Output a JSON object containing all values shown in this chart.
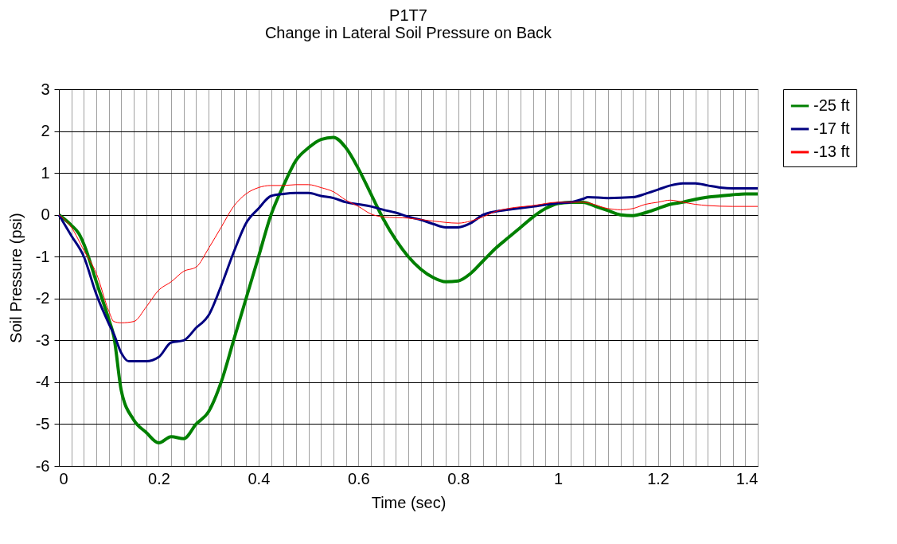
{
  "chart_data": {
    "type": "line",
    "title": "P1T7",
    "subtitle": "Change in Lateral Soil Pressure on Back",
    "xlabel": "Time (sec)",
    "ylabel": "Soil Pressure (psi)",
    "xlim": [
      0,
      1.4
    ],
    "ylim": [
      -6,
      3
    ],
    "yticks": [
      -6,
      -5,
      -4,
      -3,
      -2,
      -1,
      0,
      1,
      2,
      3
    ],
    "xticks": [
      0,
      {
        "value": 0.025,
        "label": null
      },
      {
        "value": 0.05,
        "label": null
      },
      {
        "value": 0.075,
        "label": null
      },
      {
        "value": 0.1,
        "label": null
      },
      {
        "value": 0.125,
        "label": null
      },
      {
        "value": 0.15,
        "label": null
      },
      {
        "value": 0.175,
        "label": null
      },
      0.2,
      {
        "value": 0.225,
        "label": null
      },
      {
        "value": 0.25,
        "label": null
      },
      {
        "value": 0.275,
        "label": null
      },
      {
        "value": 0.3,
        "label": null
      },
      {
        "value": 0.325,
        "label": null
      },
      {
        "value": 0.35,
        "label": null
      },
      {
        "value": 0.375,
        "label": null
      },
      0.4,
      {
        "value": 0.425,
        "label": null
      },
      {
        "value": 0.45,
        "label": null
      },
      {
        "value": 0.475,
        "label": null
      },
      {
        "value": 0.5,
        "label": null
      },
      {
        "value": 0.525,
        "label": null
      },
      {
        "value": 0.55,
        "label": null
      },
      {
        "value": 0.575,
        "label": null
      },
      0.6,
      {
        "value": 0.625,
        "label": null
      },
      {
        "value": 0.65,
        "label": null
      },
      {
        "value": 0.675,
        "label": null
      },
      {
        "value": 0.7,
        "label": null
      },
      {
        "value": 0.725,
        "label": null
      },
      {
        "value": 0.75,
        "label": null
      },
      {
        "value": 0.775,
        "label": null
      },
      0.8,
      {
        "value": 0.825,
        "label": null
      },
      {
        "value": 0.85,
        "label": null
      },
      {
        "value": 0.875,
        "label": null
      },
      {
        "value": 0.9,
        "label": null
      },
      {
        "value": 0.925,
        "label": null
      },
      {
        "value": 0.95,
        "label": null
      },
      {
        "value": 0.975,
        "label": null
      },
      1,
      {
        "value": 1.025,
        "label": null
      },
      {
        "value": 1.05,
        "label": null
      },
      {
        "value": 1.075,
        "label": null
      },
      {
        "value": 1.1,
        "label": null
      },
      {
        "value": 1.125,
        "label": null
      },
      {
        "value": 1.15,
        "label": null
      },
      {
        "value": 1.175,
        "label": null
      },
      1.2,
      {
        "value": 1.225,
        "label": null
      },
      {
        "value": 1.25,
        "label": null
      },
      {
        "value": 1.275,
        "label": null
      },
      {
        "value": 1.3,
        "label": null
      },
      {
        "value": 1.325,
        "label": null
      },
      {
        "value": 1.35,
        "label": null
      },
      {
        "value": 1.375,
        "label": null
      },
      1.4
    ],
    "grid": true,
    "legend": "right",
    "line_style": "solid",
    "marker": "none",
    "series": [
      {
        "name": "-25 ft",
        "color": "#008000",
        "x": [
          0,
          0.025,
          0.04,
          0.05,
          0.075,
          0.1,
          0.11,
          0.125,
          0.15,
          0.175,
          0.2,
          0.225,
          0.25,
          0.275,
          0.3,
          0.325,
          0.35,
          0.375,
          0.4,
          0.425,
          0.45,
          0.475,
          0.5,
          0.525,
          0.55,
          0.575,
          0.6,
          0.625,
          0.65,
          0.675,
          0.7,
          0.725,
          0.75,
          0.775,
          0.8,
          0.825,
          0.85,
          0.875,
          0.9,
          0.925,
          0.95,
          0.975,
          1.0,
          1.025,
          1.05,
          1.075,
          1.1,
          1.125,
          1.15,
          1.175,
          1.2,
          1.225,
          1.25,
          1.275,
          1.3,
          1.325,
          1.35,
          1.375,
          1.4
        ],
        "values": [
          0,
          -0.25,
          -0.45,
          -0.7,
          -1.6,
          -2.5,
          -2.9,
          -4.2,
          -4.9,
          -5.2,
          -5.45,
          -5.3,
          -5.35,
          -5.0,
          -4.7,
          -4.0,
          -3.0,
          -2.0,
          -1.0,
          0,
          0.7,
          1.3,
          1.6,
          1.8,
          1.85,
          1.6,
          1.1,
          0.5,
          -0.1,
          -0.6,
          -1.0,
          -1.3,
          -1.5,
          -1.6,
          -1.58,
          -1.4,
          -1.1,
          -0.8,
          -0.55,
          -0.3,
          -0.05,
          0.15,
          0.27,
          0.3,
          0.3,
          0.2,
          0.1,
          0.0,
          -0.02,
          0.05,
          0.15,
          0.25,
          0.3,
          0.37,
          0.42,
          0.45,
          0.48,
          0.5,
          0.5
        ]
      },
      {
        "name": "-17 ft",
        "color": "#000080",
        "x": [
          0,
          0.025,
          0.05,
          0.075,
          0.1,
          0.11,
          0.125,
          0.14,
          0.175,
          0.2,
          0.225,
          0.25,
          0.275,
          0.3,
          0.325,
          0.35,
          0.375,
          0.4,
          0.425,
          0.45,
          0.475,
          0.5,
          0.525,
          0.55,
          0.575,
          0.6,
          0.625,
          0.65,
          0.675,
          0.7,
          0.725,
          0.75,
          0.775,
          0.8,
          0.825,
          0.85,
          0.875,
          0.9,
          0.95,
          1.0,
          1.025,
          1.05,
          1.06,
          1.1,
          1.15,
          1.175,
          1.2,
          1.225,
          1.25,
          1.275,
          1.3,
          1.325,
          1.35,
          1.4
        ],
        "values": [
          0,
          -0.5,
          -1.0,
          -1.9,
          -2.6,
          -2.85,
          -3.3,
          -3.5,
          -3.5,
          -3.4,
          -3.05,
          -3.0,
          -2.7,
          -2.4,
          -1.7,
          -0.9,
          -0.2,
          0.15,
          0.45,
          0.5,
          0.52,
          0.52,
          0.45,
          0.4,
          0.3,
          0.25,
          0.2,
          0.12,
          0.05,
          -0.05,
          -0.12,
          -0.22,
          -0.3,
          -0.3,
          -0.2,
          0.0,
          0.08,
          0.12,
          0.2,
          0.28,
          0.3,
          0.38,
          0.42,
          0.4,
          0.42,
          0.5,
          0.6,
          0.7,
          0.75,
          0.75,
          0.7,
          0.65,
          0.63,
          0.63
        ]
      },
      {
        "name": "-13 ft",
        "color": "#ff0000",
        "x": [
          0,
          0.025,
          0.05,
          0.075,
          0.1,
          0.11,
          0.125,
          0.15,
          0.175,
          0.2,
          0.225,
          0.25,
          0.275,
          0.3,
          0.325,
          0.35,
          0.375,
          0.4,
          0.425,
          0.45,
          0.475,
          0.5,
          0.525,
          0.55,
          0.575,
          0.6,
          0.625,
          0.65,
          0.7,
          0.75,
          0.8,
          0.825,
          0.85,
          0.875,
          0.9,
          0.95,
          1.0,
          1.05,
          1.1,
          1.125,
          1.15,
          1.175,
          1.2,
          1.225,
          1.25,
          1.275,
          1.3,
          1.35,
          1.4
        ],
        "values": [
          0,
          -0.3,
          -0.85,
          -1.4,
          -2.3,
          -2.55,
          -2.58,
          -2.55,
          -2.2,
          -1.8,
          -1.6,
          -1.35,
          -1.25,
          -0.8,
          -0.3,
          0.2,
          0.5,
          0.65,
          0.7,
          0.7,
          0.72,
          0.72,
          0.65,
          0.55,
          0.35,
          0.2,
          0.02,
          -0.05,
          -0.08,
          -0.15,
          -0.2,
          -0.15,
          -0.05,
          0.08,
          0.15,
          0.22,
          0.3,
          0.3,
          0.15,
          0.12,
          0.15,
          0.25,
          0.3,
          0.35,
          0.3,
          0.25,
          0.22,
          0.2,
          0.2
        ]
      }
    ]
  }
}
